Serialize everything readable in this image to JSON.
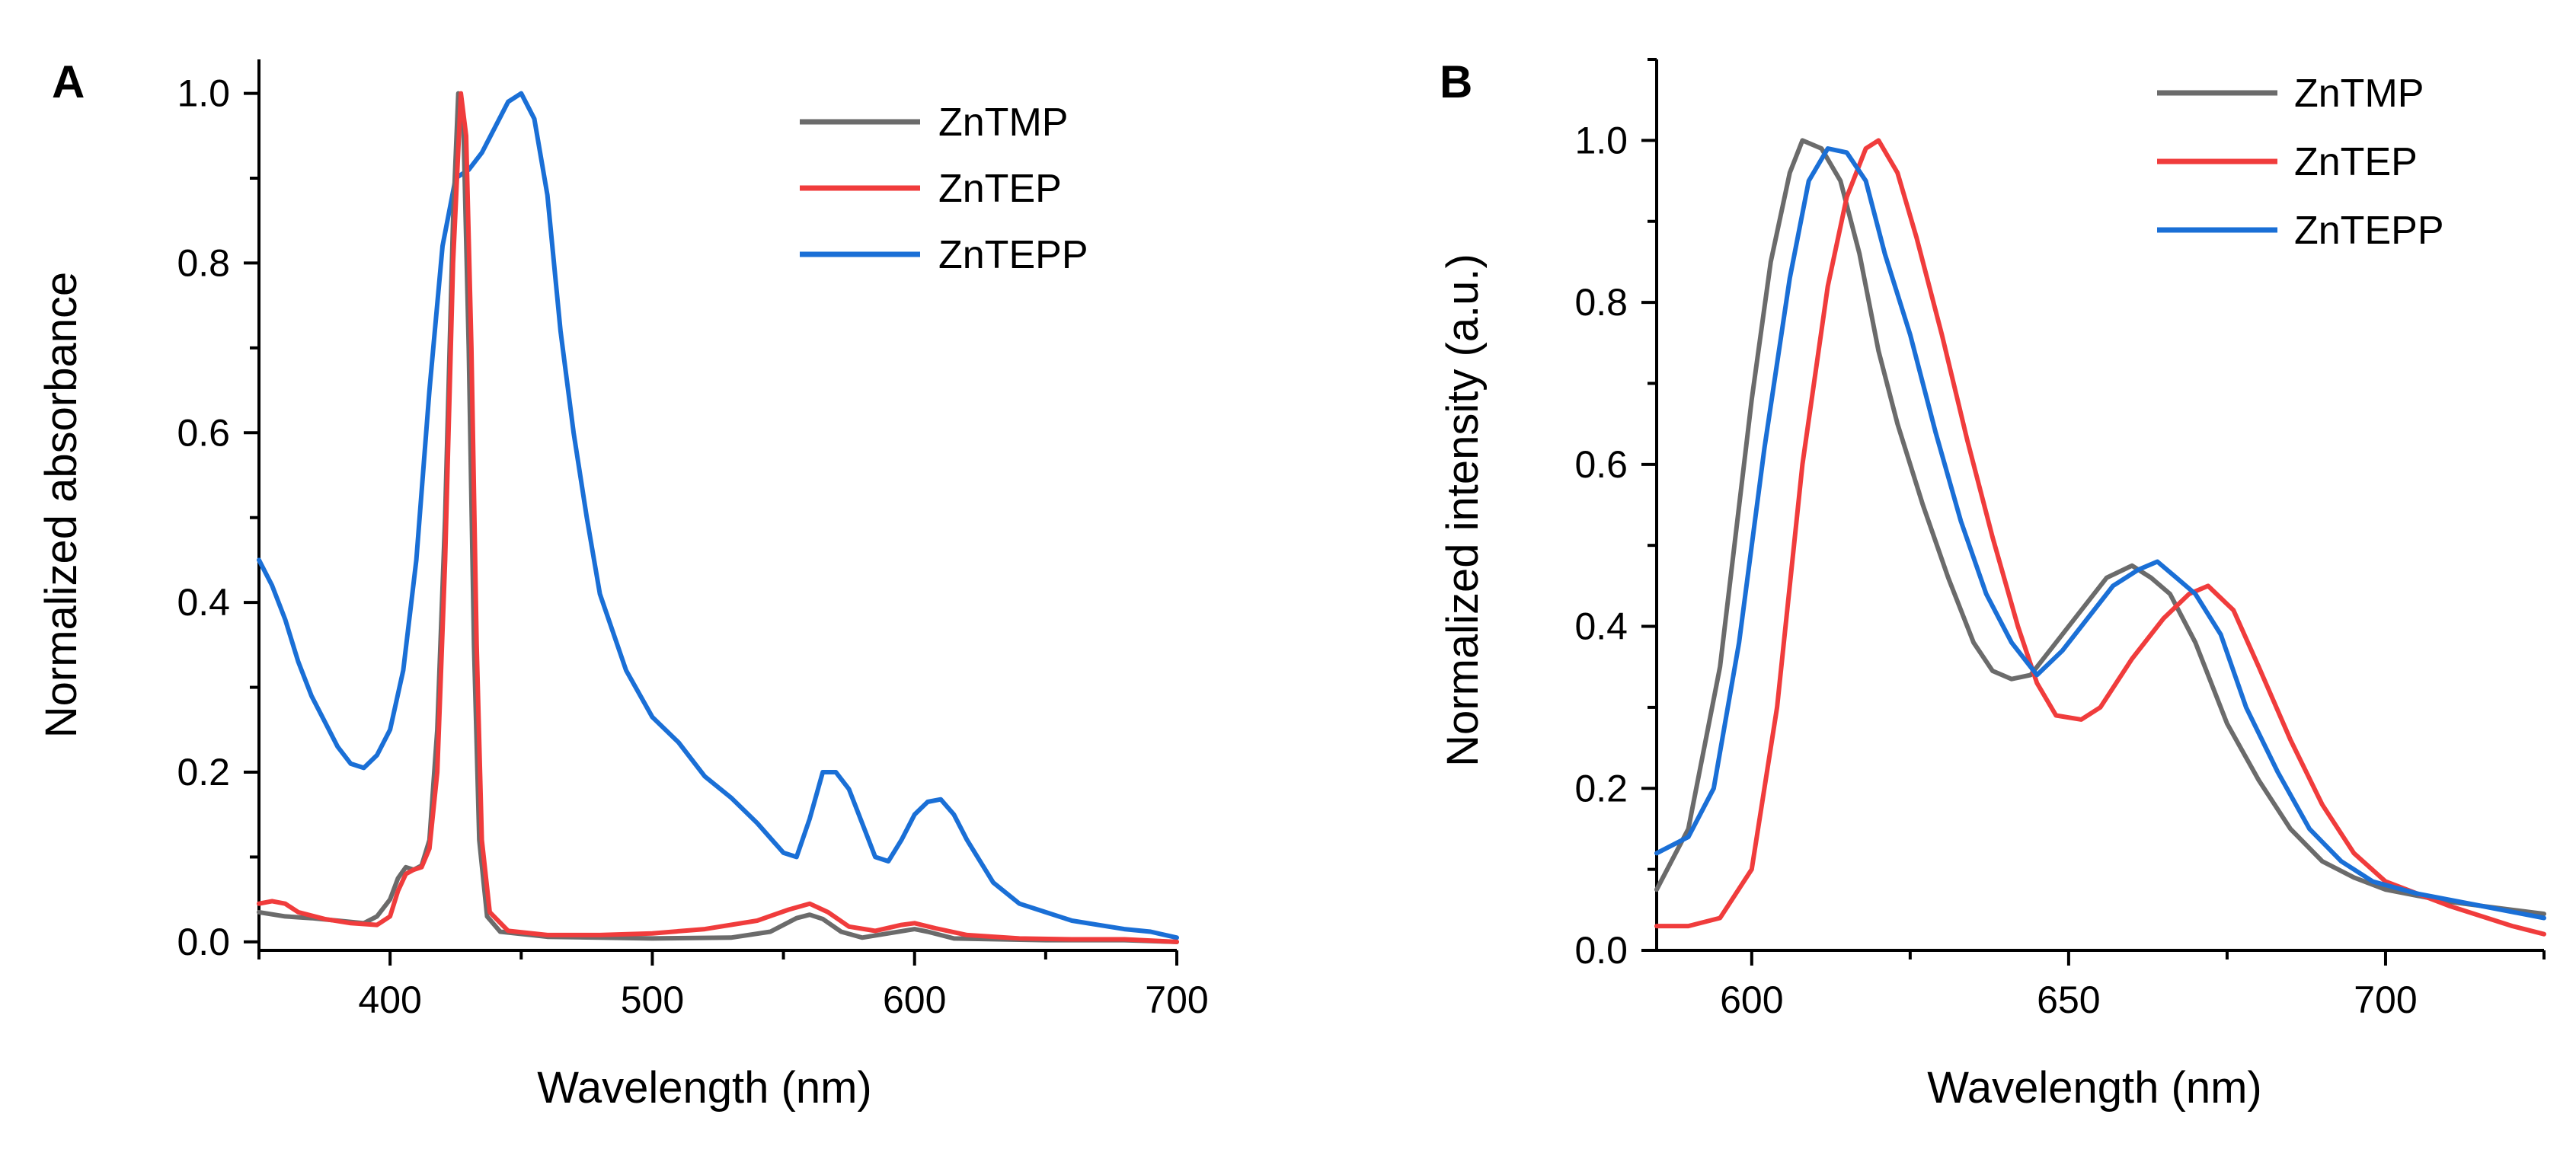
{
  "chart_data": [
    {
      "panel_label": "A",
      "type": "line",
      "xlabel": "Wavelength (nm)",
      "ylabel": "Normalized absorbance",
      "xlim": [
        350,
        700
      ],
      "ylim": [
        -0.01,
        1.04
      ],
      "xticks": [
        400,
        500,
        600,
        700
      ],
      "xtick_labels": [
        "400",
        "500",
        "600",
        "700"
      ],
      "x_minor_step": 50,
      "yticks": [
        0.0,
        0.2,
        0.4,
        0.6,
        0.8,
        1.0
      ],
      "ytick_labels": [
        "0.0",
        "0.2",
        "0.4",
        "0.6",
        "0.8",
        "1.0"
      ],
      "y_minor_step": 0.1,
      "legend_position": "top-right",
      "series": [
        {
          "name": "ZnTMP",
          "color": "#6b6b6b",
          "points": [
            [
              350,
              0.035
            ],
            [
              360,
              0.03
            ],
            [
              370,
              0.028
            ],
            [
              380,
              0.025
            ],
            [
              390,
              0.022
            ],
            [
              395,
              0.03
            ],
            [
              400,
              0.05
            ],
            [
              403,
              0.075
            ],
            [
              406,
              0.088
            ],
            [
              409,
              0.085
            ],
            [
              412,
              0.09
            ],
            [
              415,
              0.12
            ],
            [
              418,
              0.25
            ],
            [
              421,
              0.5
            ],
            [
              424,
              0.85
            ],
            [
              426,
              1.0
            ],
            [
              428,
              0.96
            ],
            [
              430,
              0.7
            ],
            [
              432,
              0.35
            ],
            [
              434,
              0.12
            ],
            [
              437,
              0.03
            ],
            [
              442,
              0.012
            ],
            [
              460,
              0.006
            ],
            [
              500,
              0.004
            ],
            [
              530,
              0.005
            ],
            [
              545,
              0.012
            ],
            [
              555,
              0.028
            ],
            [
              560,
              0.032
            ],
            [
              565,
              0.027
            ],
            [
              572,
              0.012
            ],
            [
              580,
              0.005
            ],
            [
              590,
              0.01
            ],
            [
              600,
              0.015
            ],
            [
              605,
              0.012
            ],
            [
              615,
              0.004
            ],
            [
              650,
              0.002
            ],
            [
              680,
              0.002
            ],
            [
              700,
              0.0
            ]
          ]
        },
        {
          "name": "ZnTEP",
          "color": "#f03c3c",
          "points": [
            [
              350,
              0.045
            ],
            [
              355,
              0.048
            ],
            [
              360,
              0.045
            ],
            [
              365,
              0.035
            ],
            [
              375,
              0.027
            ],
            [
              385,
              0.022
            ],
            [
              395,
              0.02
            ],
            [
              400,
              0.03
            ],
            [
              403,
              0.06
            ],
            [
              406,
              0.08
            ],
            [
              409,
              0.085
            ],
            [
              412,
              0.088
            ],
            [
              415,
              0.11
            ],
            [
              418,
              0.2
            ],
            [
              421,
              0.45
            ],
            [
              424,
              0.8
            ],
            [
              427,
              1.0
            ],
            [
              429,
              0.95
            ],
            [
              431,
              0.7
            ],
            [
              433,
              0.35
            ],
            [
              435,
              0.12
            ],
            [
              438,
              0.035
            ],
            [
              445,
              0.013
            ],
            [
              460,
              0.008
            ],
            [
              480,
              0.008
            ],
            [
              500,
              0.01
            ],
            [
              520,
              0.015
            ],
            [
              540,
              0.025
            ],
            [
              552,
              0.038
            ],
            [
              560,
              0.045
            ],
            [
              567,
              0.035
            ],
            [
              575,
              0.018
            ],
            [
              585,
              0.013
            ],
            [
              595,
              0.02
            ],
            [
              600,
              0.022
            ],
            [
              608,
              0.016
            ],
            [
              620,
              0.008
            ],
            [
              640,
              0.004
            ],
            [
              660,
              0.003
            ],
            [
              680,
              0.003
            ],
            [
              700,
              0.0
            ]
          ]
        },
        {
          "name": "ZnTEPP",
          "color": "#1a6fd6",
          "points": [
            [
              350,
              0.45
            ],
            [
              355,
              0.42
            ],
            [
              360,
              0.38
            ],
            [
              365,
              0.33
            ],
            [
              370,
              0.29
            ],
            [
              375,
              0.26
            ],
            [
              380,
              0.23
            ],
            [
              385,
              0.21
            ],
            [
              390,
              0.205
            ],
            [
              395,
              0.22
            ],
            [
              400,
              0.25
            ],
            [
              405,
              0.32
            ],
            [
              410,
              0.45
            ],
            [
              415,
              0.65
            ],
            [
              420,
              0.82
            ],
            [
              425,
              0.9
            ],
            [
              430,
              0.91
            ],
            [
              435,
              0.93
            ],
            [
              440,
              0.96
            ],
            [
              445,
              0.99
            ],
            [
              450,
              1.0
            ],
            [
              455,
              0.97
            ],
            [
              460,
              0.88
            ],
            [
              465,
              0.72
            ],
            [
              470,
              0.6
            ],
            [
              475,
              0.5
            ],
            [
              480,
              0.41
            ],
            [
              490,
              0.32
            ],
            [
              500,
              0.265
            ],
            [
              510,
              0.235
            ],
            [
              520,
              0.195
            ],
            [
              530,
              0.17
            ],
            [
              540,
              0.14
            ],
            [
              550,
              0.105
            ],
            [
              555,
              0.1
            ],
            [
              560,
              0.145
            ],
            [
              565,
              0.2
            ],
            [
              570,
              0.2
            ],
            [
              575,
              0.18
            ],
            [
              580,
              0.14
            ],
            [
              585,
              0.1
            ],
            [
              590,
              0.095
            ],
            [
              595,
              0.12
            ],
            [
              600,
              0.15
            ],
            [
              605,
              0.165
            ],
            [
              610,
              0.168
            ],
            [
              615,
              0.15
            ],
            [
              620,
              0.12
            ],
            [
              630,
              0.07
            ],
            [
              640,
              0.045
            ],
            [
              650,
              0.035
            ],
            [
              660,
              0.025
            ],
            [
              670,
              0.02
            ],
            [
              680,
              0.015
            ],
            [
              690,
              0.012
            ],
            [
              700,
              0.005
            ]
          ]
        }
      ]
    },
    {
      "panel_label": "B",
      "type": "line",
      "xlabel": "Wavelength (nm)",
      "ylabel": "Normalized intensity (a.u.)",
      "xlim": [
        585,
        725
      ],
      "ylim": [
        0.0,
        1.1
      ],
      "xticks": [
        600,
        650,
        700
      ],
      "xtick_labels": [
        "600",
        "650",
        "700"
      ],
      "x_minor_step": 25,
      "yticks": [
        0.0,
        0.2,
        0.4,
        0.6,
        0.8,
        1.0
      ],
      "ytick_labels": [
        "0.0",
        "0.2",
        "0.4",
        "0.6",
        "0.8",
        "1.0"
      ],
      "y_minor_step": 0.1,
      "legend_position": "top-right",
      "series": [
        {
          "name": "ZnTMP",
          "color": "#6b6b6b",
          "points": [
            [
              585,
              0.075
            ],
            [
              590,
              0.15
            ],
            [
              595,
              0.35
            ],
            [
              600,
              0.68
            ],
            [
              603,
              0.85
            ],
            [
              606,
              0.96
            ],
            [
              608,
              1.0
            ],
            [
              611,
              0.99
            ],
            [
              614,
              0.95
            ],
            [
              617,
              0.86
            ],
            [
              620,
              0.74
            ],
            [
              623,
              0.65
            ],
            [
              627,
              0.55
            ],
            [
              631,
              0.46
            ],
            [
              635,
              0.38
            ],
            [
              638,
              0.345
            ],
            [
              641,
              0.335
            ],
            [
              644,
              0.34
            ],
            [
              648,
              0.38
            ],
            [
              652,
              0.42
            ],
            [
              656,
              0.46
            ],
            [
              660,
              0.475
            ],
            [
              663,
              0.46
            ],
            [
              666,
              0.44
            ],
            [
              670,
              0.38
            ],
            [
              675,
              0.28
            ],
            [
              680,
              0.21
            ],
            [
              685,
              0.15
            ],
            [
              690,
              0.11
            ],
            [
              695,
              0.09
            ],
            [
              700,
              0.075
            ],
            [
              710,
              0.06
            ],
            [
              720,
              0.05
            ],
            [
              725,
              0.045
            ]
          ]
        },
        {
          "name": "ZnTEP",
          "color": "#f03c3c",
          "points": [
            [
              585,
              0.03
            ],
            [
              590,
              0.03
            ],
            [
              595,
              0.04
            ],
            [
              600,
              0.1
            ],
            [
              604,
              0.3
            ],
            [
              608,
              0.6
            ],
            [
              612,
              0.82
            ],
            [
              615,
              0.93
            ],
            [
              618,
              0.99
            ],
            [
              620,
              1.0
            ],
            [
              623,
              0.96
            ],
            [
              626,
              0.88
            ],
            [
              630,
              0.76
            ],
            [
              634,
              0.63
            ],
            [
              638,
              0.51
            ],
            [
              642,
              0.4
            ],
            [
              645,
              0.33
            ],
            [
              648,
              0.29
            ],
            [
              652,
              0.285
            ],
            [
              655,
              0.3
            ],
            [
              660,
              0.36
            ],
            [
              665,
              0.41
            ],
            [
              669,
              0.44
            ],
            [
              672,
              0.45
            ],
            [
              676,
              0.42
            ],
            [
              680,
              0.35
            ],
            [
              685,
              0.26
            ],
            [
              690,
              0.18
            ],
            [
              695,
              0.12
            ],
            [
              700,
              0.085
            ],
            [
              710,
              0.055
            ],
            [
              720,
              0.03
            ],
            [
              725,
              0.02
            ]
          ]
        },
        {
          "name": "ZnTEPP",
          "color": "#1a6fd6",
          "points": [
            [
              585,
              0.12
            ],
            [
              590,
              0.14
            ],
            [
              594,
              0.2
            ],
            [
              598,
              0.38
            ],
            [
              602,
              0.62
            ],
            [
              606,
              0.83
            ],
            [
              609,
              0.95
            ],
            [
              612,
              0.99
            ],
            [
              615,
              0.985
            ],
            [
              618,
              0.95
            ],
            [
              621,
              0.86
            ],
            [
              625,
              0.76
            ],
            [
              629,
              0.64
            ],
            [
              633,
              0.53
            ],
            [
              637,
              0.44
            ],
            [
              641,
              0.38
            ],
            [
              645,
              0.34
            ],
            [
              649,
              0.37
            ],
            [
              653,
              0.41
            ],
            [
              657,
              0.45
            ],
            [
              661,
              0.47
            ],
            [
              664,
              0.48
            ],
            [
              667,
              0.46
            ],
            [
              670,
              0.44
            ],
            [
              674,
              0.39
            ],
            [
              678,
              0.3
            ],
            [
              683,
              0.22
            ],
            [
              688,
              0.15
            ],
            [
              693,
              0.11
            ],
            [
              698,
              0.085
            ],
            [
              705,
              0.07
            ],
            [
              715,
              0.055
            ],
            [
              725,
              0.04
            ]
          ]
        }
      ]
    }
  ]
}
